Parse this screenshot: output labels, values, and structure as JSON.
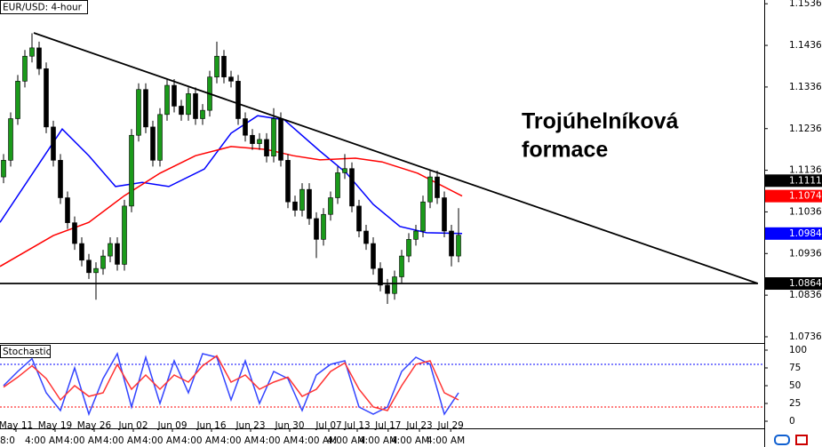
{
  "chart_data": [
    {
      "type": "candlestick",
      "title": "EUR/USD: 4-hour",
      "up_color": "#1a9a1a",
      "down_color": "#000000",
      "open": [
        1.112,
        1.116,
        1.126,
        1.135,
        1.141,
        1.143,
        1.138,
        1.124,
        1.116,
        1.107,
        1.101,
        1.096,
        1.092,
        1.089,
        1.09,
        1.093,
        1.096,
        1.091,
        1.105,
        1.122,
        1.133,
        1.124,
        1.116,
        1.127,
        1.134,
        1.129,
        1.127,
        1.132,
        1.126,
        1.128,
        1.136,
        1.141,
        1.136,
        1.135,
        1.126,
        1.122,
        1.12,
        1.121,
        1.117,
        1.126,
        1.116,
        1.106,
        1.104,
        1.109,
        1.102,
        1.097,
        1.103,
        1.107,
        1.113,
        1.114,
        1.105,
        1.099,
        1.096,
        1.09,
        1.086,
        1.084,
        1.088,
        1.093,
        1.097,
        1.099,
        1.106,
        1.112,
        1.107,
        1.099,
        1.093
      ],
      "high": [
        1.1175,
        1.1275,
        1.1365,
        1.1425,
        1.1465,
        1.1445,
        1.1395,
        1.1255,
        1.1175,
        1.1085,
        1.1025,
        1.0975,
        1.0935,
        1.0915,
        1.0945,
        1.0975,
        1.0975,
        1.1065,
        1.1235,
        1.1345,
        1.1345,
        1.1255,
        1.1285,
        1.1355,
        1.1355,
        1.1305,
        1.1335,
        1.1335,
        1.1295,
        1.1375,
        1.1445,
        1.1425,
        1.1375,
        1.1365,
        1.1275,
        1.1235,
        1.1225,
        1.1225,
        1.1285,
        1.1275,
        1.1175,
        1.1075,
        1.1105,
        1.1105,
        1.1035,
        1.1045,
        1.1085,
        1.1145,
        1.1175,
        1.1155,
        1.1065,
        1.1005,
        1.0975,
        1.0915,
        1.0875,
        1.0895,
        1.0945,
        1.0985,
        1.1005,
        1.1075,
        1.1135,
        1.1135,
        1.1085,
        1.1005,
        1.1045
      ],
      "low": [
        1.1105,
        1.1145,
        1.1245,
        1.1335,
        1.1395,
        1.1365,
        1.1225,
        1.1145,
        1.1055,
        1.0995,
        1.0945,
        1.0905,
        1.0875,
        1.0825,
        1.0885,
        1.0915,
        1.0895,
        1.0895,
        1.1035,
        1.1205,
        1.1225,
        1.1145,
        1.1145,
        1.1255,
        1.1275,
        1.1255,
        1.1255,
        1.1245,
        1.1245,
        1.1265,
        1.1345,
        1.1345,
        1.1335,
        1.1245,
        1.1205,
        1.1185,
        1.1185,
        1.1155,
        1.1155,
        1.1145,
        1.1045,
        1.1025,
        1.1025,
        1.1005,
        1.0925,
        1.0955,
        1.1015,
        1.1055,
        1.1115,
        1.1035,
        1.0975,
        1.0945,
        1.0885,
        1.0845,
        1.0815,
        1.0825,
        1.0865,
        1.0915,
        1.0955,
        1.0975,
        1.1045,
        1.1055,
        1.0975,
        1.0905,
        1.0915
      ],
      "close": [
        1.116,
        1.126,
        1.135,
        1.141,
        1.143,
        1.138,
        1.124,
        1.116,
        1.107,
        1.101,
        1.096,
        1.092,
        1.089,
        1.09,
        1.093,
        1.096,
        1.091,
        1.105,
        1.122,
        1.133,
        1.124,
        1.116,
        1.127,
        1.134,
        1.129,
        1.127,
        1.132,
        1.126,
        1.128,
        1.136,
        1.141,
        1.136,
        1.135,
        1.126,
        1.122,
        1.12,
        1.121,
        1.117,
        1.126,
        1.116,
        1.106,
        1.104,
        1.109,
        1.102,
        1.097,
        1.103,
        1.107,
        1.113,
        1.114,
        1.105,
        1.099,
        1.096,
        1.09,
        1.086,
        1.084,
        1.088,
        1.093,
        1.097,
        1.099,
        1.106,
        1.112,
        1.107,
        1.099,
        1.093,
        1.098
      ],
      "moving_averages": [
        {
          "color": "#0000ff",
          "x": [
            -0.5,
            4.5,
            8.25,
            12,
            15.75,
            19.5,
            23.25,
            28.25,
            32,
            35.75,
            39.5,
            44.5,
            48.25,
            52,
            55.75,
            59.5,
            64.5
          ],
          "values": [
            1.1011,
            1.1139,
            1.1235,
            1.1171,
            1.1097,
            1.1107,
            1.1097,
            1.1139,
            1.1225,
            1.1267,
            1.1257,
            1.1182,
            1.1129,
            1.1054,
            1.1001,
            1.0986,
            1.0984
          ]
        },
        {
          "color": "#ff0000",
          "x": [
            -0.5,
            7,
            12,
            17,
            22,
            27,
            32,
            37,
            40.75,
            44.5,
            49.5,
            53.25,
            58.25,
            64.5
          ],
          "values": [
            1.0905,
            1.0979,
            1.1011,
            1.1075,
            1.1129,
            1.1171,
            1.1193,
            1.1186,
            1.1171,
            1.1161,
            1.1165,
            1.1156,
            1.1129,
            1.1074
          ]
        }
      ],
      "trendlines": [
        {
          "color": "#000000",
          "x": [
            4.25,
            106.1
          ],
          "values": [
            1.1466,
            1.0864
          ]
        },
        {
          "color": "#000000",
          "x": [
            -0.5,
            106.1
          ],
          "values": [
            1.0864,
            1.0864
          ]
        }
      ],
      "annotation": [
        "Trojúhelníková",
        "formace"
      ],
      "price_tags": [
        {
          "value": 1.1111,
          "color": "#000000"
        },
        {
          "value": 1.1074,
          "color": "#ff0000"
        },
        {
          "value": 1.0984,
          "color": "#0000ff"
        },
        {
          "value": 1.0864,
          "color": "#000000"
        }
      ],
      "xlim": [
        -0.5,
        107
      ],
      "ylim": [
        1.0721,
        1.1545
      ],
      "yticks": [
        1.1536,
        1.1436,
        1.1336,
        1.1236,
        1.1136,
        1.1036,
        1.0936,
        1.0836,
        1.0736
      ]
    },
    {
      "type": "stochastic",
      "title": "Stochastic",
      "x": [
        0,
        2,
        4,
        6,
        8,
        10,
        12,
        14,
        16,
        18,
        20,
        22,
        24,
        26,
        28,
        30,
        32,
        34,
        36,
        38,
        40,
        42,
        44,
        46,
        48,
        50,
        52,
        54,
        56,
        58,
        60,
        62,
        64
      ],
      "series": [
        {
          "color": "#3344ff",
          "values": [
            50,
            70,
            88,
            40,
            15,
            75,
            10,
            60,
            95,
            20,
            90,
            25,
            85,
            40,
            95,
            90,
            30,
            85,
            25,
            70,
            60,
            15,
            65,
            80,
            85,
            20,
            10,
            20,
            70,
            90,
            80,
            10,
            40
          ]
        },
        {
          "color": "#ff3333",
          "values": [
            48,
            62,
            78,
            60,
            30,
            50,
            35,
            40,
            80,
            45,
            65,
            45,
            65,
            55,
            78,
            92,
            55,
            65,
            45,
            55,
            62,
            35,
            45,
            70,
            82,
            45,
            20,
            15,
            50,
            80,
            85,
            40,
            30
          ]
        }
      ],
      "levels": [
        {
          "value": 80,
          "color": "#0000ff"
        },
        {
          "value": 20,
          "color": "#ff0000"
        }
      ],
      "xlim": [
        -0.5,
        107
      ],
      "ylim": [
        -10,
        107.5
      ],
      "yticks": [
        100,
        75,
        50,
        25,
        0
      ],
      "xticks": [
        {
          "value": 1.75,
          "label": "May 11"
        },
        {
          "value": 7.25,
          "label": "May 19"
        },
        {
          "value": 12.75,
          "label": "May 26"
        },
        {
          "value": 18.25,
          "label": "Jun 02"
        },
        {
          "value": 23.75,
          "label": "Jun 09"
        },
        {
          "value": 29.25,
          "label": "Jun 16"
        },
        {
          "value": 34.75,
          "label": "Jun 23"
        },
        {
          "value": 40.25,
          "label": "Jun 30"
        },
        {
          "value": 45.75,
          "label": "Jul 07"
        },
        {
          "value": 49.75,
          "label": "Jul 13"
        },
        {
          "value": 54.1,
          "label": "Jul 17"
        },
        {
          "value": 58.5,
          "label": "Jul 23"
        },
        {
          "value": 62.9,
          "label": "Jul 29"
        }
      ],
      "time_ticks": [
        {
          "value": -0.25,
          "label": "8:0"
        },
        {
          "value": 5.5,
          "label": "4:00 AM"
        },
        {
          "value": 11,
          "label": "4:00 AM"
        },
        {
          "value": 16.5,
          "label": "4:00 AM"
        },
        {
          "value": 22,
          "label": "4:00 AM"
        },
        {
          "value": 27.5,
          "label": "4:00 AM"
        },
        {
          "value": 33,
          "label": "4:00 AM"
        },
        {
          "value": 38.5,
          "label": "4:00 AM"
        },
        {
          "value": 44,
          "label": "4:00 AM"
        },
        {
          "value": 48,
          "label": "4:00 AM"
        },
        {
          "value": 52.5,
          "label": "4:00 AM"
        },
        {
          "value": 57,
          "label": "4:00 AM"
        },
        {
          "value": 62,
          "label": "4:00 AM"
        }
      ]
    }
  ]
}
